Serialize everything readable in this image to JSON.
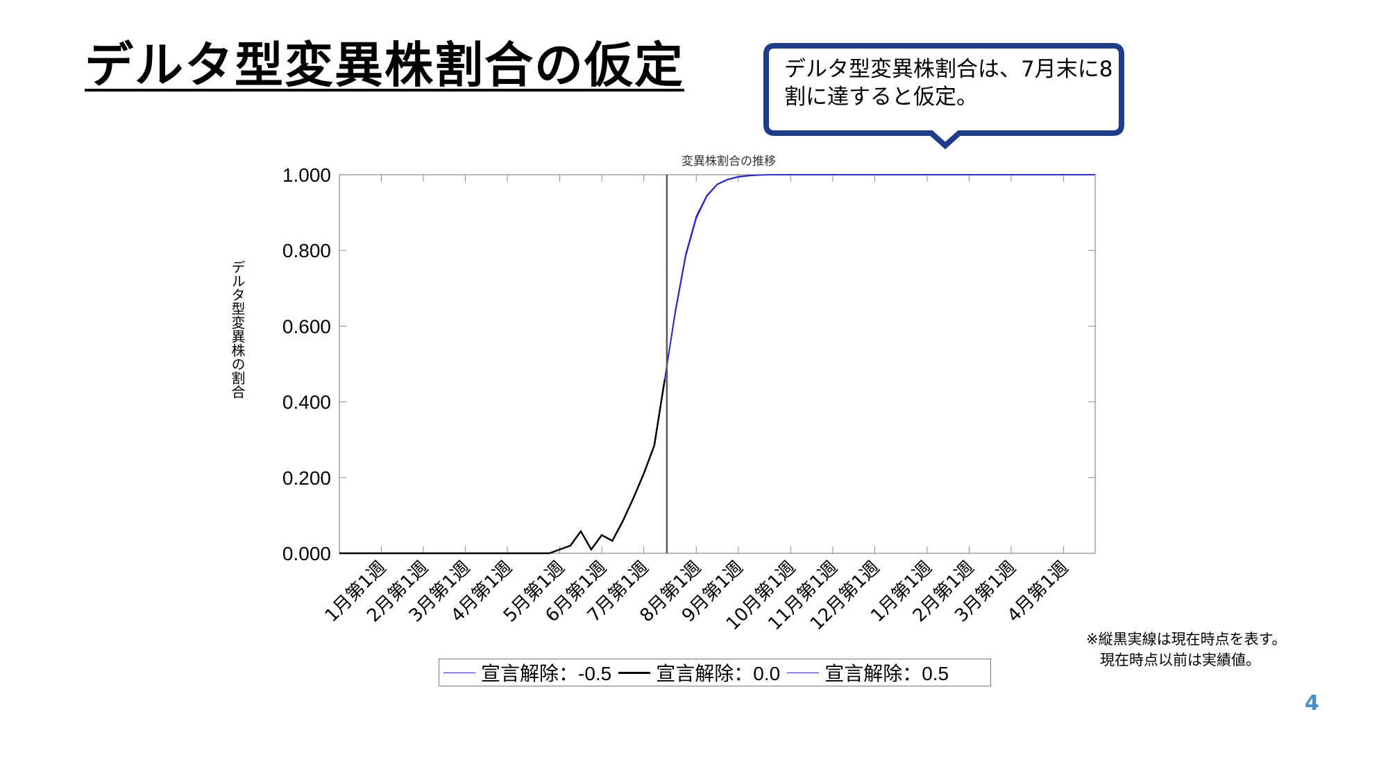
{
  "slide": {
    "title": "デルタ型変異株割合の仮定",
    "callout": "デルタ型変異株割合は、7月末に8割に達すると仮定。",
    "note_line1": "※縦黒実線は現在時点を表す。",
    "note_line2": "現在時点以前は実績値。",
    "page_number": "4"
  },
  "colors": {
    "callout_border": "#1f3c88",
    "series_dark": "#000000",
    "series_blue": "#2b2bc0",
    "vline": "#555555"
  },
  "chart_data": {
    "type": "line",
    "title": "変異株割合の推移",
    "xlabel": "",
    "ylabel": "デルタ型変異株の割合",
    "ylim": [
      0,
      1
    ],
    "yticks": [
      0.0,
      0.2,
      0.4,
      0.6,
      0.8,
      1.0
    ],
    "ytick_labels": [
      "0.000",
      "0.200",
      "0.400",
      "0.600",
      "0.800",
      "1.000"
    ],
    "x_range_weeks": [
      0,
      72
    ],
    "x_ticks": [
      {
        "week": 4,
        "label": "1月第1週"
      },
      {
        "week": 8,
        "label": "2月第1週"
      },
      {
        "week": 12,
        "label": "3月第1週"
      },
      {
        "week": 16,
        "label": "4月第1週"
      },
      {
        "week": 21,
        "label": "5月第1週"
      },
      {
        "week": 25,
        "label": "6月第1週"
      },
      {
        "week": 29,
        "label": "7月第1週"
      },
      {
        "week": 34,
        "label": "8月第1週"
      },
      {
        "week": 38,
        "label": "9月第1週"
      },
      {
        "week": 43,
        "label": "10月第1週"
      },
      {
        "week": 47,
        "label": "11月第1週"
      },
      {
        "week": 51,
        "label": "12月第1週"
      },
      {
        "week": 56,
        "label": "1月第1週"
      },
      {
        "week": 60,
        "label": "2月第1週"
      },
      {
        "week": 64,
        "label": "3月第1週"
      },
      {
        "week": 69,
        "label": "4月第1週"
      }
    ],
    "current_week": 31.2,
    "grid": false,
    "legend_position": "bottom",
    "series": [
      {
        "name": "宣言解除：-0.5",
        "color": "#2b2bc0",
        "x": [
          31,
          32,
          33,
          34,
          35,
          36,
          37,
          38,
          39,
          40,
          41,
          42,
          43,
          45,
          48,
          52,
          56,
          60,
          64,
          68,
          72
        ],
        "y": [
          0.46,
          0.64,
          0.79,
          0.89,
          0.945,
          0.975,
          0.988,
          0.995,
          0.998,
          0.999,
          1.0,
          1.0,
          1.0,
          1.0,
          1.0,
          1.0,
          1.0,
          1.0,
          1.0,
          1.0,
          1.0
        ]
      },
      {
        "name": "宣言解除：0.0",
        "color": "#000000",
        "x": [
          0,
          4,
          8,
          12,
          16,
          20,
          21,
          22,
          23,
          24,
          25,
          26,
          27,
          28,
          29,
          30,
          31
        ],
        "y": [
          0,
          0,
          0,
          0,
          0,
          0,
          0.01,
          0.02,
          0.058,
          0.01,
          0.048,
          0.033,
          0.085,
          0.145,
          0.21,
          0.285,
          0.46
        ]
      },
      {
        "name": "宣言解除：0.5",
        "color": "#2b2bc0",
        "x": [
          31,
          32,
          33,
          34,
          35,
          36,
          37,
          38,
          39,
          40,
          41,
          42,
          43,
          45,
          48,
          52,
          56,
          60,
          64,
          68,
          72
        ],
        "y": [
          0.46,
          0.635,
          0.785,
          0.885,
          0.943,
          0.974,
          0.987,
          0.994,
          0.997,
          0.999,
          1.0,
          1.0,
          1.0,
          1.0,
          1.0,
          1.0,
          1.0,
          1.0,
          1.0,
          1.0,
          1.0
        ]
      }
    ]
  }
}
